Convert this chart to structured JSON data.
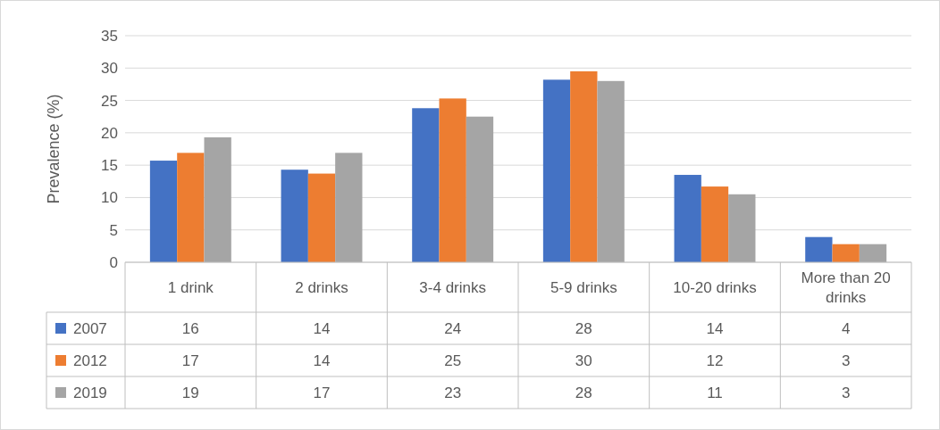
{
  "chart_data": {
    "type": "bar",
    "ylabel": "Prevalence (%)",
    "categories": [
      "1 drink",
      "2 drinks",
      "3-4 drinks",
      "5-9 drinks",
      "10-20 drinks",
      "More than 20 drinks"
    ],
    "series": [
      {
        "name": "2007",
        "color": "#4472c4",
        "values": [
          15.7,
          14.3,
          23.8,
          28.2,
          13.5,
          3.9
        ],
        "value_labels": [
          "16",
          "14",
          "24",
          "28",
          "14",
          "4"
        ]
      },
      {
        "name": "2012",
        "color": "#ed7d31",
        "values": [
          16.9,
          13.7,
          25.3,
          29.5,
          11.7,
          2.8
        ],
        "value_labels": [
          "17",
          "14",
          "25",
          "30",
          "12",
          "3"
        ]
      },
      {
        "name": "2019",
        "color": "#a5a5a5",
        "values": [
          19.3,
          16.9,
          22.5,
          28.0,
          10.5,
          2.8
        ],
        "value_labels": [
          "19",
          "17",
          "23",
          "28",
          "11",
          "3"
        ]
      }
    ],
    "ylim": [
      0,
      35
    ],
    "yticks": [
      0,
      5,
      10,
      15,
      20,
      25,
      30,
      35
    ],
    "grid": "y",
    "legend": "bottom left"
  }
}
